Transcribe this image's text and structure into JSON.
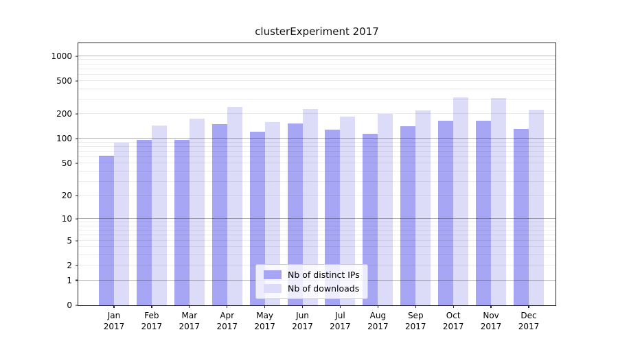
{
  "chart_data": {
    "type": "bar",
    "title": "clusterExperiment 2017",
    "y_scale": "log10(1+x)",
    "xlabel": "",
    "ylabel": "",
    "grid": true,
    "legend_position": "lower center",
    "categories": [
      "Jan 2017",
      "Feb 2017",
      "Mar 2017",
      "Apr 2017",
      "May 2017",
      "Jun 2017",
      "Jul 2017",
      "Aug 2017",
      "Sep 2017",
      "Oct 2017",
      "Nov 2017",
      "Dec 2017"
    ],
    "series": [
      {
        "name": "Nb of distinct IPs",
        "color": "#a6a6f4",
        "values": [
          62,
          97,
          97,
          152,
          122,
          155,
          130,
          115,
          143,
          165,
          165,
          132
        ]
      },
      {
        "name": "Nb of downloads",
        "color": "#dcdcf8",
        "values": [
          90,
          145,
          175,
          245,
          160,
          230,
          185,
          200,
          222,
          320,
          310,
          225
        ]
      }
    ],
    "y_ticks": [
      0,
      1,
      2,
      5,
      10,
      20,
      50,
      100,
      200,
      500,
      1000
    ],
    "y_top": 1433,
    "major_gridlines": [
      1,
      10,
      100,
      1000
    ],
    "minor_gridlines": [
      2,
      3,
      4,
      5,
      6,
      7,
      8,
      9,
      20,
      30,
      40,
      50,
      60,
      70,
      80,
      90,
      200,
      300,
      400,
      500,
      600,
      700,
      800,
      900
    ]
  },
  "legend": {
    "items": [
      {
        "label": "Nb of distinct IPs",
        "color": "#a6a6f4"
      },
      {
        "label": "Nb of downloads",
        "color": "#dcdcf8"
      }
    ]
  }
}
